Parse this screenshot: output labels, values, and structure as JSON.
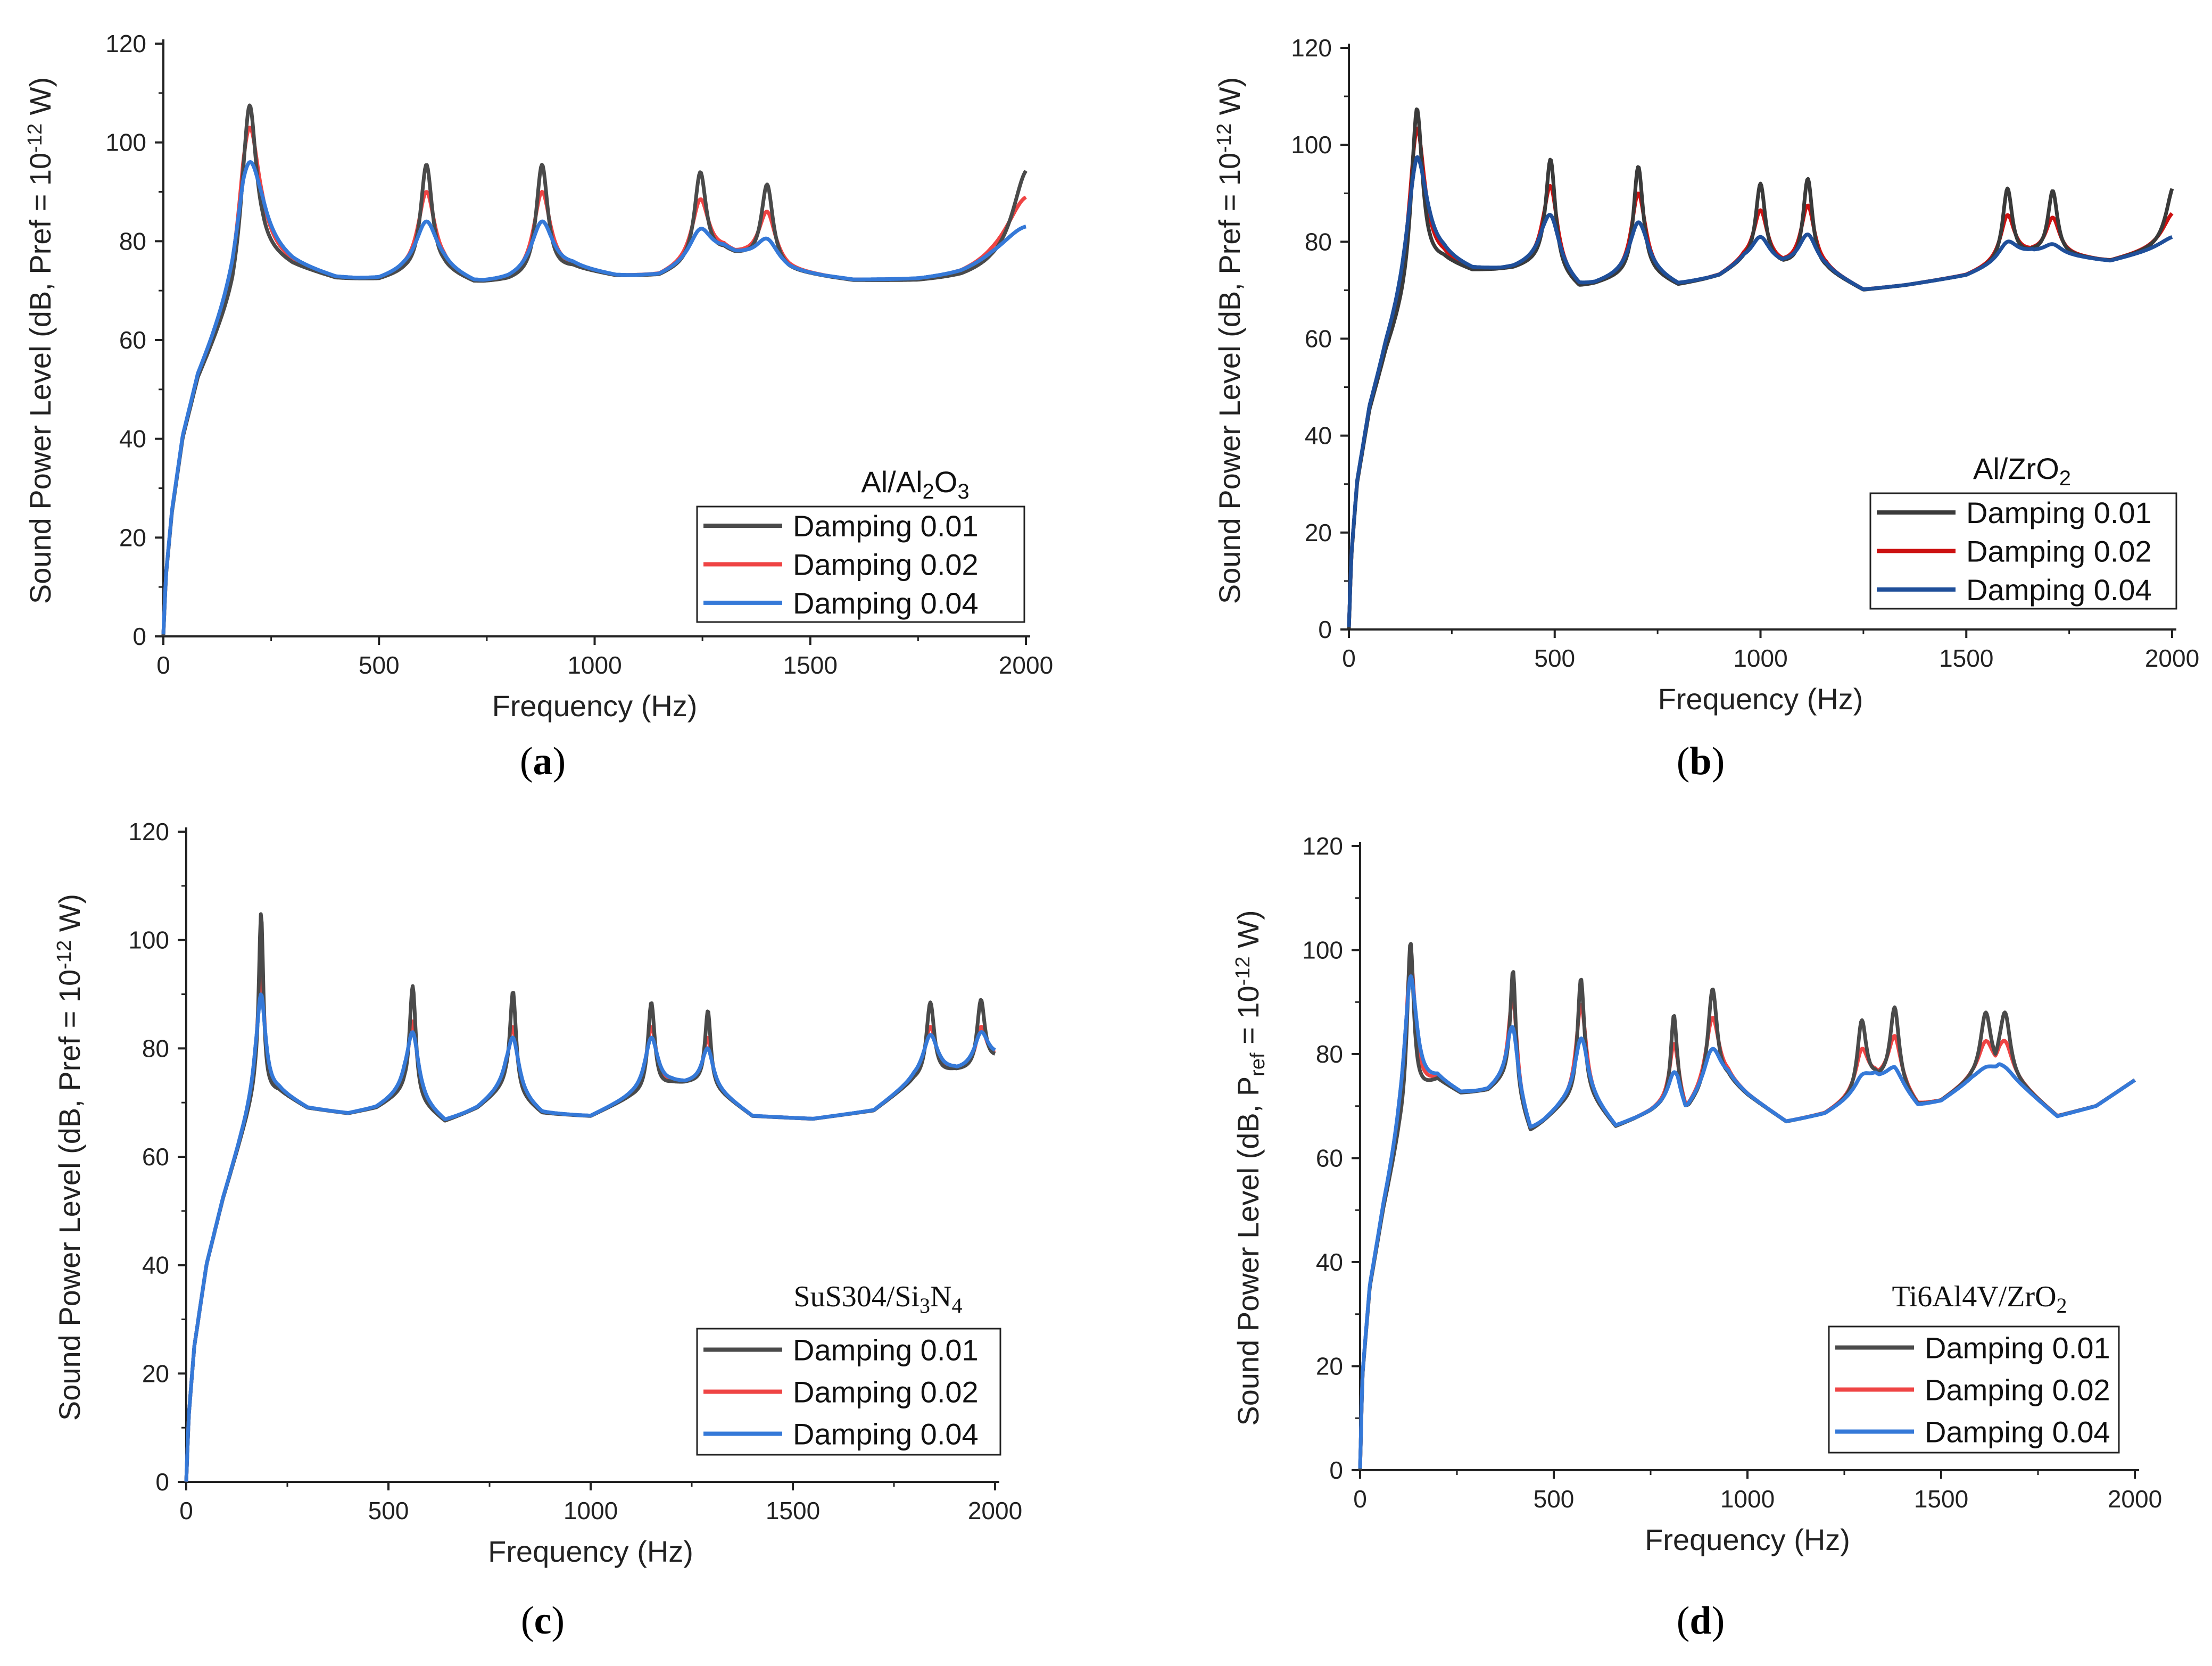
{
  "chart_data": [
    {
      "type": "line",
      "panel_label": "a",
      "legend_title": {
        "main": "Al/Al",
        "sub1": "2",
        "mid": "O",
        "sub2": "3",
        "full": "Al/Al2O3"
      },
      "xlabel": "Frequency (Hz)",
      "ylabel": {
        "pre": "Sound Power Level (dB, Pref = 10",
        "sup": "-12",
        "post": " W)"
      },
      "xlim": [
        0,
        2000
      ],
      "ylim": [
        0,
        120
      ],
      "xticks": [
        "0",
        "500",
        "1000",
        "1500",
        "2000"
      ],
      "yticks": [
        "0",
        "20",
        "40",
        "60",
        "80",
        "100",
        "120"
      ],
      "baseline": [
        [
          0,
          0
        ],
        [
          6,
          12
        ],
        [
          20,
          25
        ],
        [
          45,
          40
        ],
        [
          80,
          52
        ],
        [
          120,
          60
        ],
        [
          160,
          68
        ],
        [
          185,
          76
        ],
        [
          230,
          78
        ],
        [
          300,
          75
        ],
        [
          400,
          72.5
        ],
        [
          500,
          72.2
        ],
        [
          560,
          73.5
        ],
        [
          650,
          74
        ],
        [
          720,
          71.7
        ],
        [
          800,
          72
        ],
        [
          950,
          74.5
        ],
        [
          1050,
          73
        ],
        [
          1150,
          73
        ],
        [
          1300,
          78
        ],
        [
          1350,
          77
        ],
        [
          1450,
          74
        ],
        [
          1600,
          72
        ],
        [
          1750,
          71.8
        ],
        [
          1850,
          72.3
        ],
        [
          1920,
          73.5
        ],
        [
          2000,
          74
        ]
      ],
      "peaks": [
        [
          200,
          107.5,
          103,
          96,
          40
        ],
        [
          610,
          95.5,
          90,
          84,
          35
        ],
        [
          878,
          95.5,
          90,
          84,
          35
        ],
        [
          1245,
          94,
          88.5,
          82.5,
          35
        ],
        [
          1400,
          91.5,
          86,
          80.5,
          35
        ],
        [
          2005,
          94.5,
          89,
          83,
          95
        ]
      ],
      "legend_loc": "lower-right",
      "series": [
        {
          "name": "Damping 0.01",
          "color": "#4a4a4a"
        },
        {
          "name": "Damping 0.02",
          "color": "#ef4444"
        },
        {
          "name": "Damping 0.04",
          "color": "#3579d8"
        }
      ]
    },
    {
      "type": "line",
      "panel_label": "b",
      "legend_title": {
        "main": "Al/ZrO",
        "sub1": "2",
        "mid": "",
        "sub2": "",
        "full": "Al/ZrO2"
      },
      "xlabel": "Frequency (Hz)",
      "ylabel": {
        "pre": "Sound Power Level (dB, Pref = 10",
        "sup": "-12",
        "post": " W)"
      },
      "xlim": [
        0,
        2000
      ],
      "ylim": [
        0,
        120
      ],
      "xticks": [
        "0",
        "500",
        "1000",
        "1500",
        "2000"
      ],
      "yticks": [
        "0",
        "20",
        "40",
        "60",
        "80",
        "100",
        "120"
      ],
      "baseline": [
        [
          0,
          0
        ],
        [
          6,
          15
        ],
        [
          20,
          30
        ],
        [
          50,
          45
        ],
        [
          90,
          57
        ],
        [
          130,
          66
        ],
        [
          165,
          75
        ],
        [
          230,
          76
        ],
        [
          300,
          74
        ],
        [
          400,
          74.5
        ],
        [
          470,
          76
        ],
        [
          560,
          70.5
        ],
        [
          650,
          72.5
        ],
        [
          720,
          74
        ],
        [
          800,
          71
        ],
        [
          900,
          73
        ],
        [
          960,
          76
        ],
        [
          1060,
          75.5
        ],
        [
          1160,
          74
        ],
        [
          1250,
          70
        ],
        [
          1350,
          71
        ],
        [
          1500,
          73
        ],
        [
          1620,
          77
        ],
        [
          1660,
          78
        ],
        [
          1760,
          77
        ],
        [
          1850,
          76
        ],
        [
          1950,
          78
        ],
        [
          2000,
          79
        ]
      ],
      "peaks": [
        [
          165,
          107.5,
          103.5,
          97.5,
          35
        ],
        [
          490,
          97,
          91.5,
          85.5,
          30
        ],
        [
          703,
          95.5,
          90,
          84,
          30
        ],
        [
          1000,
          92,
          86.5,
          81,
          30
        ],
        [
          1115,
          93,
          87.5,
          81.5,
          30
        ],
        [
          1600,
          91,
          85.5,
          80,
          30
        ],
        [
          1710,
          90.5,
          85,
          79.5,
          30
        ],
        [
          2005,
          91.5,
          86,
          81,
          50
        ]
      ],
      "legend_loc": "lower-right",
      "series": [
        {
          "name": "Damping 0.01",
          "color": "#3a3a3a"
        },
        {
          "name": "Damping 0.02",
          "color": "#cc1111"
        },
        {
          "name": "Damping 0.04",
          "color": "#1f4f9a"
        }
      ]
    },
    {
      "type": "line",
      "panel_label": "c",
      "legend_title": {
        "main": "SuS304/Si",
        "sub1": "3",
        "mid": "N",
        "sub2": "4",
        "full": "SuS304/Si3N4"
      },
      "xlabel": "Frequency (Hz)",
      "ylabel": {
        "pre": "Sound Power Level (dB, Pref = 10",
        "sup": "-12",
        "post": " W)"
      },
      "xlim": [
        0,
        2000
      ],
      "ylim": [
        0,
        120
      ],
      "xticks": [
        "0",
        "500",
        "1000",
        "1500",
        "2000"
      ],
      "yticks": [
        "0",
        "20",
        "40",
        "60",
        "80",
        "100",
        "120"
      ],
      "baseline": [
        [
          0,
          0
        ],
        [
          6,
          12
        ],
        [
          20,
          25
        ],
        [
          50,
          40
        ],
        [
          90,
          52
        ],
        [
          130,
          62
        ],
        [
          170,
          72
        ],
        [
          230,
          72
        ],
        [
          300,
          69
        ],
        [
          400,
          68
        ],
        [
          470,
          69
        ],
        [
          540,
          72
        ],
        [
          640,
          66.5
        ],
        [
          720,
          69
        ],
        [
          790,
          73
        ],
        [
          880,
          68
        ],
        [
          1000,
          67.5
        ],
        [
          1100,
          71
        ],
        [
          1200,
          73.5
        ],
        [
          1280,
          74
        ],
        [
          1400,
          67.5
        ],
        [
          1550,
          67
        ],
        [
          1700,
          68.5
        ],
        [
          1800,
          74
        ],
        [
          1900,
          76
        ],
        [
          1950,
          76
        ],
        [
          2000,
          78
        ]
      ],
      "peaks": [
        [
          185,
          105,
          95,
          90,
          15
        ],
        [
          560,
          91.5,
          85,
          83,
          20
        ],
        [
          808,
          90.5,
          84,
          82,
          20
        ],
        [
          1150,
          88.5,
          84,
          82,
          22
        ],
        [
          1290,
          87,
          82,
          80,
          18
        ],
        [
          1840,
          88.5,
          84,
          82.5,
          25
        ],
        [
          1965,
          89,
          84,
          83,
          25
        ]
      ],
      "legend_loc": "lower-right",
      "series": [
        {
          "name": "Damping 0.01",
          "color": "#4a4a4a"
        },
        {
          "name": "Damping 0.02",
          "color": "#ef4444"
        },
        {
          "name": "Damping 0.04",
          "color": "#3579d8"
        }
      ]
    },
    {
      "type": "line",
      "panel_label": "d",
      "legend_title": {
        "main": "Ti6Al4V/ZrO",
        "sub1": "2",
        "mid": "",
        "sub2": "",
        "full": "Ti6Al4V/ZrO2"
      },
      "xlabel": "Frequency (Hz)",
      "ylabel": {
        "pre": "Sound Power Level (dB, P",
        "sub": "ref",
        "mid": " = 10",
        "sup": "-12",
        "post": " W)"
      },
      "xlim": [
        0,
        2000
      ],
      "ylim": [
        0,
        120
      ],
      "xticks": [
        "0",
        "500",
        "1000",
        "1500",
        "2000"
      ],
      "yticks": [
        "0",
        "20",
        "40",
        "60",
        "80",
        "100",
        "120"
      ],
      "baseline": [
        [
          0,
          0
        ],
        [
          6,
          18
        ],
        [
          25,
          35
        ],
        [
          60,
          50
        ],
        [
          100,
          64
        ],
        [
          130,
          72
        ],
        [
          200,
          75
        ],
        [
          260,
          72.5
        ],
        [
          330,
          73
        ],
        [
          385,
          76
        ],
        [
          440,
          65
        ],
        [
          520,
          70
        ],
        [
          580,
          73
        ],
        [
          660,
          66
        ],
        [
          750,
          69
        ],
        [
          820,
          72
        ],
        [
          840,
          69
        ],
        [
          900,
          74
        ],
        [
          950,
          75
        ],
        [
          1000,
          72
        ],
        [
          1100,
          67
        ],
        [
          1200,
          68.5
        ],
        [
          1280,
          72
        ],
        [
          1330,
          75.5
        ],
        [
          1380,
          75
        ],
        [
          1440,
          70
        ],
        [
          1500,
          71
        ],
        [
          1580,
          75
        ],
        [
          1650,
          77
        ],
        [
          1720,
          73
        ],
        [
          1800,
          68
        ],
        [
          1900,
          70
        ],
        [
          2000,
          75
        ]
      ],
      "peaks": [
        [
          130,
          101.5,
          98.5,
          95,
          22
        ],
        [
          395,
          96,
          91,
          85,
          18
        ],
        [
          570,
          94.5,
          89.5,
          83,
          22
        ],
        [
          810,
          87.5,
          82,
          76.5,
          20
        ],
        [
          910,
          92.5,
          87,
          81,
          30
        ],
        [
          1295,
          86.5,
          81,
          76,
          30
        ],
        [
          1380,
          89,
          83.5,
          77.5,
          30
        ],
        [
          1615,
          88,
          82.5,
          77.5,
          35
        ],
        [
          1665,
          88,
          82.5,
          77.5,
          35
        ]
      ],
      "legend_loc": "lower-right",
      "series": [
        {
          "name": "Damping 0.01",
          "color": "#4a4a4a"
        },
        {
          "name": "Damping 0.02",
          "color": "#ef4444"
        },
        {
          "name": "Damping 0.04",
          "color": "#3579d8"
        }
      ]
    }
  ]
}
